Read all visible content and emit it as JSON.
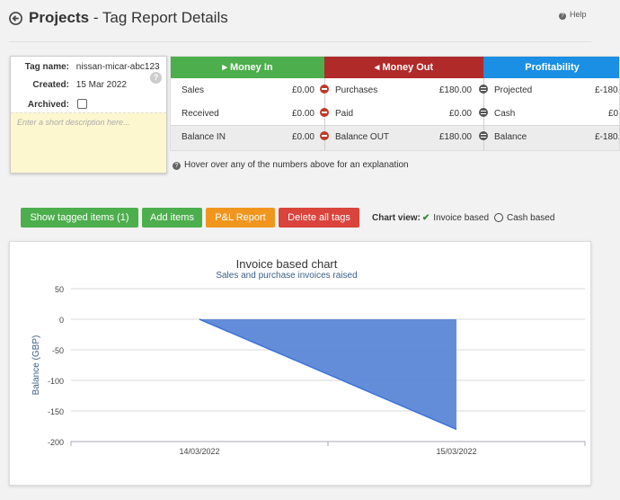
{
  "header": {
    "title_bold": "Projects",
    "title_rest": " - Tag Report Details",
    "help_label": "Help"
  },
  "tag": {
    "name_label": "Tag name:",
    "name_value": "nissan-micar-abc123",
    "created_label": "Created:",
    "created_value": "15 Mar 2022",
    "archived_label": "Archived:",
    "archived": false,
    "description_placeholder": "Enter a short description here..."
  },
  "money_in": {
    "header": "Money In",
    "color": "#4cae4c",
    "rows": [
      {
        "label": "Sales",
        "value": "£0.00"
      },
      {
        "label": "Received",
        "value": "£0.00"
      },
      {
        "label": "Balance IN",
        "value": "£0.00"
      }
    ]
  },
  "money_out": {
    "header": "Money Out",
    "color": "#b02a2a",
    "rows": [
      {
        "label": "Purchases",
        "value": "£180.00"
      },
      {
        "label": "Paid",
        "value": "£0.00"
      },
      {
        "label": "Balance OUT",
        "value": "£180.00"
      }
    ]
  },
  "profitability": {
    "header": "Profitability",
    "color": "#1a8fe3",
    "rows": [
      {
        "label": "Projected",
        "value": "£-180."
      },
      {
        "label": "Cash",
        "value": "£0."
      },
      {
        "label": "Balance",
        "value": "£-180."
      }
    ]
  },
  "hover_note": "Hover over any of the numbers above for an explanation",
  "buttons": {
    "show_tagged": {
      "label": "Show tagged items (1)",
      "color": "#4cae4c"
    },
    "add_items": {
      "label": "Add items",
      "color": "#4cae4c"
    },
    "pl_report": {
      "label": "P&L Report",
      "color": "#f0961e"
    },
    "delete_tags": {
      "label": "Delete all tags",
      "color": "#d9443c"
    }
  },
  "chart_view": {
    "label": "Chart view:",
    "options": [
      "Invoice based",
      "Cash based"
    ],
    "selected": "Invoice based"
  },
  "chart_data": {
    "type": "area",
    "title": "Invoice based chart",
    "subtitle": "Sales and purchase invoices raised",
    "xlabel": "",
    "ylabel": "Balance (GBP)",
    "x": [
      "14/03/2022",
      "15/03/2022"
    ],
    "series": [
      {
        "values": [
          0,
          -180
        ]
      }
    ],
    "ylim": [
      -200,
      50
    ],
    "yticks": [
      50,
      0,
      -50,
      -100,
      -150,
      -200
    ],
    "grid": true,
    "color": "#5b87d6"
  }
}
